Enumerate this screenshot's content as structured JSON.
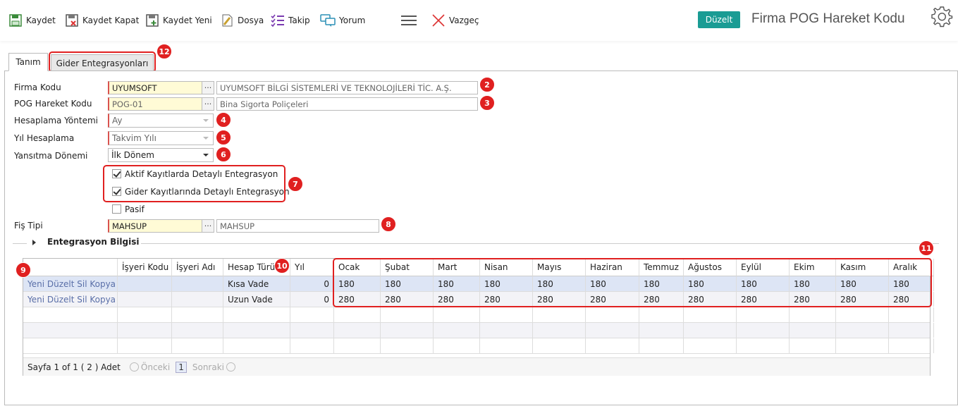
{
  "toolbar": {
    "save": "Kaydet",
    "save_close": "Kaydet Kapat",
    "save_new": "Kaydet Yeni",
    "file": "Dosya",
    "follow": "Takip",
    "comment": "Yorum",
    "cancel": "Vazgeç",
    "mode_badge": "Düzelt",
    "page_title": "Firma POG Hareket Kodu"
  },
  "tabs": [
    {
      "label": "Tanım"
    },
    {
      "label": "Gider Entegrasyonları"
    }
  ],
  "form": {
    "firma_kodu": {
      "label": "Firma Kodu",
      "value": "UYUMSOFT",
      "desc": "UYUMSOFT BİLGİ SİSTEMLERİ VE TEKNOLOJİLERİ TİC. A.Ş."
    },
    "pog_kodu": {
      "label": "POG Hareket Kodu",
      "value": "POG-01",
      "desc": "Bina Sigorta Poliçeleri"
    },
    "hesaplama_yontemi": {
      "label": "Hesaplama Yöntemi",
      "value": "Ay"
    },
    "yil_hesaplama": {
      "label": "Yıl Hesaplama",
      "value": "Takvim Yılı"
    },
    "yansitma_donemi": {
      "label": "Yansıtma Dönemi",
      "value": "İlk Dönem"
    },
    "cb_aktif": {
      "label": "Aktif Kayıtlarda Detaylı Entegrasyon",
      "checked": true
    },
    "cb_gider": {
      "label": "Gider Kayıtlarında Detaylı Entegrasyon",
      "checked": true
    },
    "cb_pasif": {
      "label": "Pasif",
      "checked": false
    },
    "fis_tipi": {
      "label": "Fiş Tipi",
      "value": "MAHSUP",
      "desc": "MAHSUP"
    }
  },
  "section_title": "Entegrasyon Bilgisi",
  "grid": {
    "columns": [
      "",
      "İşyeri Kodu",
      "İşyeri Adı",
      "Hesap Türü",
      "Yıl",
      "Ocak",
      "Şubat",
      "Mart",
      "Nisan",
      "Mayıs",
      "Haziran",
      "Temmuz",
      "Ağustos",
      "Eylül",
      "Ekim",
      "Kasım",
      "Aralık"
    ],
    "rows": [
      {
        "actions": "Yeni Düzelt Sil Kopya",
        "isyeri_kodu": "",
        "isyeri_adi": "",
        "hesap_turu": "Kısa Vade",
        "yil": "0",
        "months": [
          "180",
          "180",
          "180",
          "180",
          "180",
          "180",
          "180",
          "180",
          "180",
          "180",
          "180",
          "180"
        ]
      },
      {
        "actions": "Yeni Düzelt Sil Kopya",
        "isyeri_kodu": "",
        "isyeri_adi": "",
        "hesap_turu": "Uzun Vade",
        "yil": "0",
        "months": [
          "280",
          "280",
          "280",
          "280",
          "280",
          "280",
          "280",
          "280",
          "280",
          "280",
          "280",
          "280"
        ]
      }
    ],
    "pager": {
      "info": "Sayfa 1 of 1 ( 2 ) Adet",
      "prev": "Önceki",
      "page": "1",
      "next": "Sonraki"
    }
  },
  "markers": [
    "2",
    "3",
    "4",
    "5",
    "6",
    "7",
    "8",
    "9",
    "10",
    "11",
    "12"
  ]
}
